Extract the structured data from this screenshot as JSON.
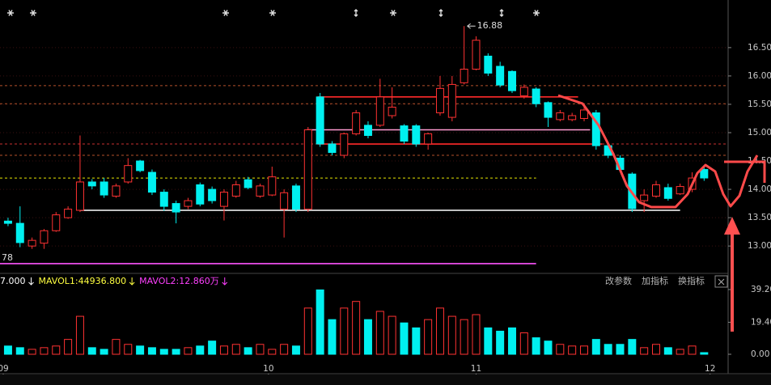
{
  "chart_data": {
    "type": "candlestick",
    "xlim": [
      -0.67,
      60
    ],
    "xticks": [
      {
        "value": -0.4,
        "label": "09"
      },
      {
        "value": 21.7,
        "label": "10"
      },
      {
        "value": 39,
        "label": "11"
      },
      {
        "value": 58.5,
        "label": "12"
      }
    ],
    "ylim": [
      12.56,
      17.34
    ],
    "yticks": [
      {
        "value": 13,
        "label": "13.00"
      },
      {
        "value": 13.5,
        "label": "13.50"
      },
      {
        "value": 14,
        "label": "14.00"
      },
      {
        "value": 14.5,
        "label": "14.50"
      },
      {
        "value": 15,
        "label": "15.00"
      },
      {
        "value": 15.5,
        "label": "15.50"
      },
      {
        "value": 16,
        "label": "16.00"
      },
      {
        "value": 16.5,
        "label": "16.50"
      }
    ],
    "up_color": "#ff3232",
    "down_color": "#00f0f0",
    "open": [
      13.44,
      13.4,
      13.0,
      13.05,
      13.27,
      13.5,
      13.63,
      14.13,
      14.13,
      13.88,
      14.13,
      14.5,
      14.3,
      13.95,
      13.75,
      13.7,
      14.08,
      14.0,
      13.7,
      13.88,
      14.17,
      13.88,
      13.9,
      13.65,
      14.06,
      13.65,
      15.63,
      14.8,
      14.6,
      14.98,
      15.13,
      15.13,
      15.3,
      15.12,
      15.12,
      14.8,
      15.35,
      15.27,
      15.88,
      16.12,
      16.35,
      16.17,
      16.08,
      15.65,
      15.77,
      15.53,
      15.23,
      15.23,
      15.25,
      15.35,
      14.77,
      14.55,
      14.27,
      13.8,
      13.88,
      14.03,
      13.92,
      14.0,
      14.35
    ],
    "close": [
      13.4,
      13.06,
      13.1,
      13.27,
      13.55,
      13.65,
      14.13,
      14.06,
      13.9,
      14.06,
      14.42,
      14.33,
      13.95,
      13.7,
      13.6,
      13.8,
      13.74,
      13.8,
      13.95,
      14.08,
      14.03,
      14.06,
      14.22,
      13.94,
      13.65,
      15.05,
      14.8,
      14.65,
      14.98,
      15.35,
      14.95,
      15.63,
      15.45,
      14.85,
      14.8,
      14.98,
      15.78,
      15.85,
      16.12,
      16.63,
      16.05,
      15.84,
      15.74,
      15.8,
      15.51,
      15.27,
      15.35,
      15.3,
      15.4,
      14.77,
      14.6,
      14.35,
      13.66,
      13.9,
      14.08,
      13.84,
      14.05,
      14.2,
      14.2
    ],
    "high": [
      13.5,
      13.7,
      13.15,
      13.3,
      13.6,
      13.7,
      14.95,
      14.18,
      14.2,
      14.1,
      14.55,
      14.52,
      14.35,
      14.0,
      13.8,
      13.85,
      14.12,
      14.05,
      14.0,
      14.15,
      14.22,
      14.1,
      14.4,
      14.0,
      14.1,
      15.1,
      15.7,
      14.85,
      15.0,
      15.4,
      15.2,
      15.95,
      15.8,
      15.15,
      15.15,
      15.0,
      16.0,
      16.0,
      16.88,
      16.7,
      16.4,
      16.25,
      16.1,
      15.85,
      15.8,
      15.55,
      15.4,
      15.35,
      15.45,
      15.4,
      14.8,
      14.6,
      14.3,
      14.0,
      14.15,
      14.1,
      14.1,
      14.3,
      14.4
    ],
    "low": [
      13.35,
      12.98,
      12.95,
      12.95,
      13.25,
      13.48,
      13.6,
      14.0,
      13.85,
      13.85,
      14.1,
      14.3,
      13.9,
      13.62,
      13.4,
      13.65,
      13.7,
      13.75,
      13.45,
      13.85,
      14.0,
      13.85,
      13.88,
      13.15,
      13.6,
      13.6,
      14.75,
      14.6,
      14.55,
      14.95,
      14.9,
      15.1,
      15.25,
      14.8,
      14.75,
      14.7,
      15.3,
      15.2,
      15.85,
      16.1,
      16.0,
      15.8,
      15.7,
      15.6,
      15.45,
      15.1,
      15.2,
      15.2,
      15.2,
      14.7,
      14.55,
      14.3,
      13.6,
      13.6,
      13.85,
      13.8,
      13.9,
      13.95,
      14.15
    ],
    "levels": [
      {
        "value": 15.83,
        "from": -0.67,
        "to": 60,
        "color": "#b4502a",
        "dashed": true
      },
      {
        "value": 15.51,
        "from": -0.67,
        "to": 60,
        "color": "#b4502a",
        "dashed": true
      },
      {
        "value": 14.8,
        "from": -0.67,
        "to": 60,
        "color": "#c83030",
        "dashed": true
      },
      {
        "value": 14.6,
        "from": -0.67,
        "to": 60,
        "color": "#b4502a",
        "dashed": true
      },
      {
        "value": 14.2,
        "from": -0.67,
        "to": 44,
        "color": "#e6e600",
        "dashed": true
      },
      {
        "value": 15.63,
        "from": 25.8,
        "to": 47.5,
        "color": "#ff2a2a",
        "dashed": false
      },
      {
        "value": 15.05,
        "from": 24.9,
        "to": 48.5,
        "color": "#ff9ad0",
        "dashed": false
      },
      {
        "value": 14.8,
        "from": 25.8,
        "to": 49.5,
        "color": "#ff2a2a",
        "dashed": false
      },
      {
        "value": 13.63,
        "from": 6,
        "to": 56,
        "color": "#ffffff",
        "dashed": false
      },
      {
        "value": 12.69,
        "from": -0.67,
        "to": 44,
        "color": "#ff55ff",
        "dashed": false
      }
    ],
    "low_label": "78",
    "volume": {
      "values": [
        5,
        4,
        3,
        4,
        5,
        9,
        23,
        4,
        3,
        9,
        6,
        5,
        4,
        3,
        3,
        4,
        5,
        8,
        5,
        6,
        4,
        6,
        3,
        6,
        5,
        28,
        39,
        21,
        28,
        32,
        21,
        26,
        23,
        19,
        16,
        21,
        28,
        23,
        21,
        24,
        16,
        14,
        16,
        13,
        10,
        8,
        6,
        5,
        5,
        9,
        6,
        6,
        9,
        4,
        6,
        4,
        3,
        5,
        1
      ],
      "ylim": [
        0,
        45.08
      ],
      "yticks": [
        {
          "value": 0,
          "label": "0.00"
        },
        {
          "value": 19.4,
          "label": "19.40"
        },
        {
          "value": 39.2,
          "label": "39.20"
        }
      ],
      "legend": [
        {
          "text": "7.000",
          "color": "#ffffff"
        },
        {
          "text": "MAVOL1:44936.800",
          "color": "#ffff40"
        },
        {
          "text": "MAVOL2:12.860万",
          "color": "#ff40ff"
        }
      ]
    },
    "toolbar": [
      "改参数",
      "加指标",
      "换指标"
    ]
  }
}
